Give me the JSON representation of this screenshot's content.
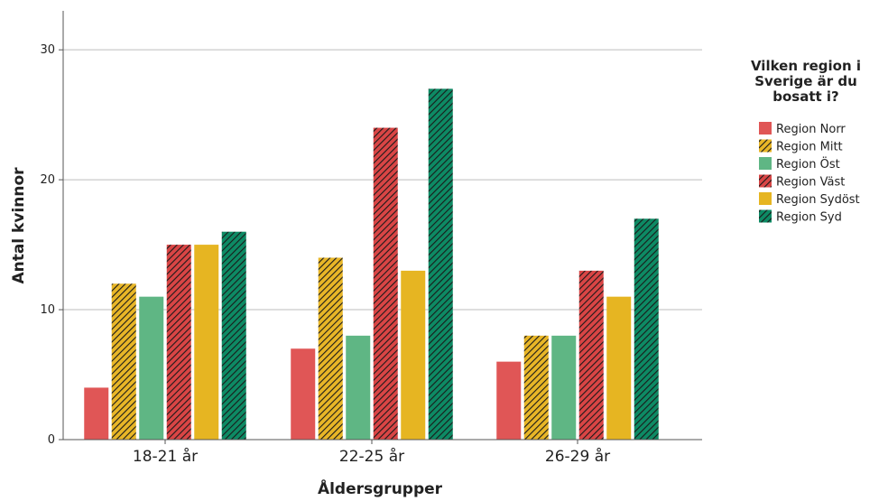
{
  "chart_data": {
    "type": "bar",
    "title": "",
    "xlabel": "Åldersgrupper",
    "ylabel": "Antal kvinnor",
    "categories": [
      "18-21 år",
      "22-25 år",
      "26-29 år"
    ],
    "ylim": [
      0,
      33
    ],
    "yticks": [
      0,
      10,
      20,
      30
    ],
    "grid": true,
    "legend": {
      "title_lines": [
        "Vilken region i",
        "Sverige är du",
        "bosatt i?"
      ],
      "placement": "right"
    },
    "series": [
      {
        "name": "Region Norr",
        "values": [
          4,
          7,
          6
        ],
        "color": "#e05656",
        "hatched": false
      },
      {
        "name": "Region Mitt",
        "values": [
          12,
          14,
          8
        ],
        "color": "#e8b627",
        "hatched": true
      },
      {
        "name": "Region Öst",
        "values": [
          11,
          8,
          8
        ],
        "color": "#5fb684",
        "hatched": false
      },
      {
        "name": "Region Väst",
        "values": [
          15,
          24,
          13
        ],
        "color": "#d94545",
        "hatched": true
      },
      {
        "name": "Region Sydöst",
        "values": [
          15,
          13,
          11
        ],
        "color": "#e6b522",
        "hatched": false
      },
      {
        "name": "Region Syd",
        "values": [
          16,
          27,
          17
        ],
        "color": "#0d8a64",
        "hatched": true
      }
    ]
  }
}
